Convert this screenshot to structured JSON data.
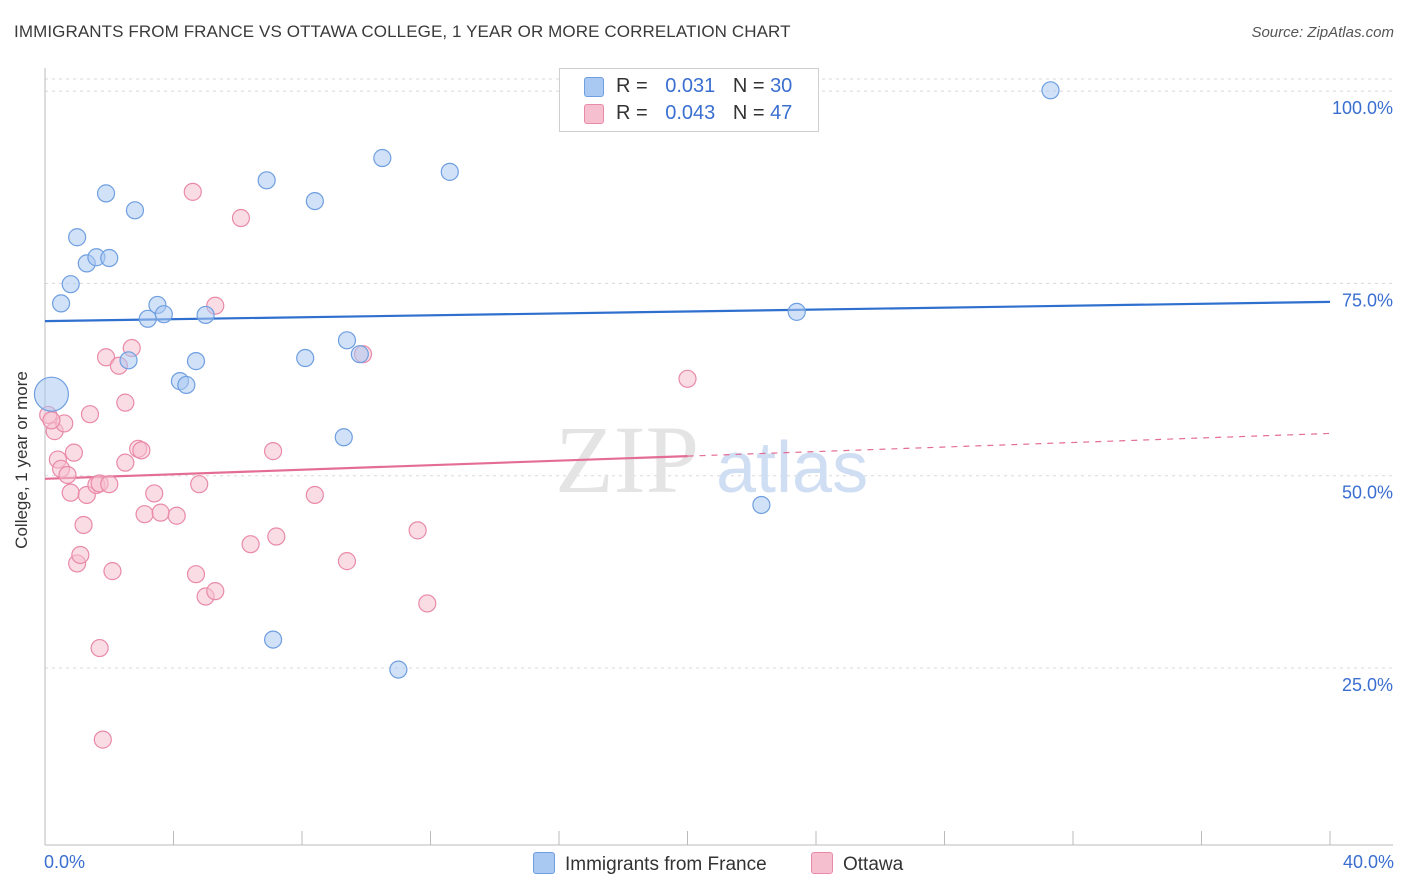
{
  "title": "IMMIGRANTS FROM FRANCE VS OTTAWA COLLEGE, 1 YEAR OR MORE CORRELATION CHART",
  "source": "Source: ZipAtlas.com",
  "watermark": {
    "zip": "ZIP",
    "atlas": "atlas"
  },
  "legend": {
    "r_label": "R =",
    "n_label": "N =",
    "rows": [
      {
        "r": "0.031",
        "n": "30",
        "color": "#a9c8f2",
        "stroke": "#6f9fe0"
      },
      {
        "r": "0.043",
        "n": "47",
        "color": "#f6bfd0",
        "stroke": "#e98aa9"
      }
    ]
  },
  "chart_data": {
    "type": "scatter",
    "title": "IMMIGRANTS FROM FRANCE VS OTTAWA COLLEGE, 1 YEAR OR MORE CORRELATION CHART",
    "xlabel": "",
    "ylabel": "College, 1 year or more",
    "xlim": [
      0,
      40
    ],
    "ylim": [
      2,
      103
    ],
    "x_tick_labels": [
      {
        "value": 0,
        "label": "0.0%"
      },
      {
        "value": 40,
        "label": "40.0%"
      }
    ],
    "y_tick_labels": [
      {
        "value": 25,
        "label": "25.0%"
      },
      {
        "value": 50,
        "label": "50.0%"
      },
      {
        "value": 75,
        "label": "75.0%"
      },
      {
        "value": 100,
        "label": "100.0%"
      }
    ],
    "grid": true,
    "legend_position": "top-center",
    "series": [
      {
        "name": "Immigrants from France",
        "color": "#a9c8f2",
        "stroke": "#6f9fe0",
        "line_color": "#2f6fce",
        "trend": {
          "x0": 0,
          "y0": 70.1,
          "x1": 40,
          "y1": 72.6,
          "solid_to": 40
        },
        "points": [
          [
            0.2,
            60.6,
            "big"
          ],
          [
            0.5,
            72.4
          ],
          [
            0.8,
            74.9
          ],
          [
            1.0,
            81.0
          ],
          [
            1.3,
            77.6
          ],
          [
            1.6,
            78.4
          ],
          [
            2.0,
            78.3
          ],
          [
            1.9,
            86.7
          ],
          [
            2.8,
            84.5
          ],
          [
            2.6,
            65.0
          ],
          [
            3.2,
            70.4
          ],
          [
            3.5,
            72.2
          ],
          [
            3.7,
            71.0
          ],
          [
            4.2,
            62.3
          ],
          [
            4.4,
            61.8
          ],
          [
            4.7,
            64.9
          ],
          [
            5.0,
            70.9
          ],
          [
            6.9,
            88.4
          ],
          [
            8.1,
            65.3
          ],
          [
            8.4,
            85.7
          ],
          [
            9.4,
            67.6
          ],
          [
            9.8,
            65.8
          ],
          [
            9.3,
            55.0
          ],
          [
            10.5,
            91.3
          ],
          [
            11.0,
            24.8
          ],
          [
            12.6,
            89.5
          ],
          [
            7.1,
            28.7
          ],
          [
            22.3,
            46.2
          ],
          [
            23.4,
            71.3
          ],
          [
            31.3,
            100.1
          ]
        ]
      },
      {
        "name": "Ottawa",
        "color": "#f6bfd0",
        "stroke": "#e98aa9",
        "line_color": "#e46d94",
        "trend": {
          "x0": 0,
          "y0": 49.6,
          "x1": 40,
          "y1": 55.5,
          "solid_to": 20
        },
        "points": [
          [
            0.1,
            57.9
          ],
          [
            0.3,
            55.8
          ],
          [
            0.4,
            52.1
          ],
          [
            0.5,
            50.9
          ],
          [
            0.7,
            50.1
          ],
          [
            0.9,
            53.0
          ],
          [
            0.8,
            47.8
          ],
          [
            0.6,
            56.8
          ],
          [
            1.0,
            38.6
          ],
          [
            1.1,
            39.7
          ],
          [
            1.2,
            43.6
          ],
          [
            1.3,
            47.5
          ],
          [
            1.4,
            58.0
          ],
          [
            1.6,
            48.8
          ],
          [
            1.7,
            49.0
          ],
          [
            1.7,
            27.6
          ],
          [
            1.8,
            15.7
          ],
          [
            1.9,
            65.4
          ],
          [
            2.0,
            48.9
          ],
          [
            2.1,
            37.6
          ],
          [
            2.3,
            64.3
          ],
          [
            2.5,
            51.7
          ],
          [
            2.5,
            59.5
          ],
          [
            2.7,
            66.6
          ],
          [
            2.9,
            53.5
          ],
          [
            3.0,
            53.3
          ],
          [
            3.1,
            45.0
          ],
          [
            3.4,
            47.7
          ],
          [
            3.6,
            45.2
          ],
          [
            4.1,
            44.8
          ],
          [
            4.6,
            86.9
          ],
          [
            4.7,
            37.2
          ],
          [
            4.8,
            48.9
          ],
          [
            5.0,
            34.3
          ],
          [
            5.3,
            35.0
          ],
          [
            5.3,
            72.1
          ],
          [
            6.1,
            83.5
          ],
          [
            6.4,
            41.1
          ],
          [
            7.1,
            53.2
          ],
          [
            7.2,
            42.1
          ],
          [
            8.4,
            47.5
          ],
          [
            9.4,
            38.9
          ],
          [
            9.9,
            65.8
          ],
          [
            11.6,
            42.9
          ],
          [
            11.9,
            33.4
          ],
          [
            20.0,
            62.6
          ],
          [
            0.2,
            57.2
          ]
        ]
      }
    ]
  },
  "bottom_legend": [
    "Immigrants from France",
    "Ottawa"
  ]
}
